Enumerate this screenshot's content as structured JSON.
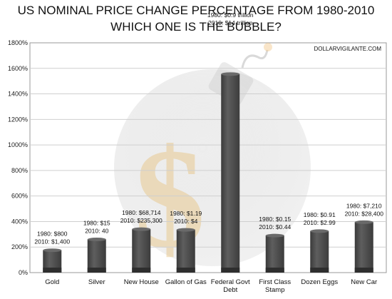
{
  "chart_data": {
    "type": "bar",
    "title_lines": [
      "US NOMINAL PRICE CHANGE PERCENTAGE FROM 1980-2010",
      "WHICH ONE IS THE BUBBLE?"
    ],
    "source": "DOLLARVIGILANTE.COM",
    "ylim": [
      0,
      1800
    ],
    "yticks": [
      0,
      200,
      400,
      600,
      800,
      1000,
      1200,
      1400,
      1600,
      1800
    ],
    "ytick_labels": [
      "0%",
      "200%",
      "400%",
      "600%",
      "800%",
      "1000%",
      "1200%",
      "1400%",
      "1600%",
      "1800%"
    ],
    "grid": true,
    "categories": [
      [
        "Gold"
      ],
      [
        "Silver"
      ],
      [
        "New House"
      ],
      [
        "Gallon of Gas"
      ],
      [
        "Federal Govt",
        "Debt"
      ],
      [
        "First Class",
        "Stamp"
      ],
      [
        "Dozen Eggs"
      ],
      [
        "New Car"
      ]
    ],
    "values": [
      175,
      260,
      340,
      335,
      1555,
      290,
      325,
      395
    ],
    "annotations": [
      [
        "1980: $800",
        "2010: $1,400"
      ],
      [
        "1980: $15",
        "2010: 40"
      ],
      [
        "1980: $68,714",
        "2010: $235,300"
      ],
      [
        "1980: $1.19",
        "2010: $4"
      ],
      [
        "1980: $0.9 trillion",
        "2010: $14 trillion"
      ],
      [
        "1980: $0.15",
        "2010: $0.44"
      ],
      [
        "1980: $0.91",
        "2010: $2.99"
      ],
      [
        "1980: $7,210",
        "2010: $28,400"
      ]
    ],
    "colors": {
      "bar": "#4a4a4a",
      "bar_dark": "#2e2e2e",
      "bar_light": "#6a6a6a",
      "grid": "#cfcfcf"
    }
  }
}
